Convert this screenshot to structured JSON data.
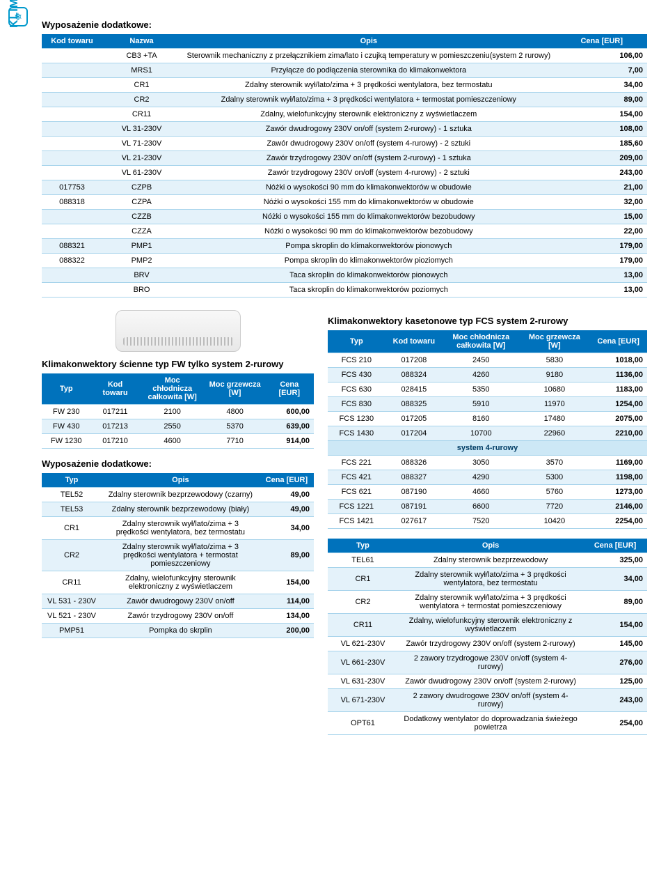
{
  "sideLabel": "KLIMATYZACJA",
  "section1": {
    "title": "Wyposażenie dodatkowe:",
    "headers": [
      "Kod towaru",
      "Nazwa",
      "Opis",
      "Cena [EUR]"
    ],
    "rows": [
      {
        "code": "",
        "name": "CB3 +TA",
        "desc": "Sterownik mechaniczny z przełącznikiem zima/lato i czujką temperatury w pomieszczeniu(system 2 rurowy)",
        "price": "106,00"
      },
      {
        "code": "",
        "name": "MRS1",
        "desc": "Przyłącze do podłączenia sterownika do klimakonwektora",
        "price": "7,00"
      },
      {
        "code": "",
        "name": "CR1",
        "desc": "Zdalny sterownik wył/lato/zima + 3 prędkości wentylatora, bez termostatu",
        "price": "34,00"
      },
      {
        "code": "",
        "name": "CR2",
        "desc": "Zdalny sterownik wył/lato/zima + 3 prędkości wentylatora + termostat pomieszczeniowy",
        "price": "89,00"
      },
      {
        "code": "",
        "name": "CR11",
        "desc": "Zdalny, wielofunkcyjny sterownik elektroniczny z wyświetlaczem",
        "price": "154,00"
      },
      {
        "code": "",
        "name": "VL 31-230V",
        "desc": "Zawór dwudrogowy 230V on/off (system 2-rurowy) - 1 sztuka",
        "price": "108,00"
      },
      {
        "code": "",
        "name": "VL 71-230V",
        "desc": "Zawór dwudrogowy 230V on/off (system 4-rurowy) - 2 sztuki",
        "price": "185,60"
      },
      {
        "code": "",
        "name": "VL 21-230V",
        "desc": "Zawór trzydrogowy 230V on/off (system 2-rurowy) - 1 sztuka",
        "price": "209,00"
      },
      {
        "code": "",
        "name": "VL 61-230V",
        "desc": "Zawór trzydrogowy 230V on/off (system 4-rurowy) - 2 sztuki",
        "price": "243,00"
      },
      {
        "code": "017753",
        "name": "CZPB",
        "desc": "Nóżki o wysokości 90 mm do klimakonwektorów w obudowie",
        "price": "21,00"
      },
      {
        "code": "088318",
        "name": "CZPA",
        "desc": "Nóżki o wysokości 155 mm do klimakonwektorów w obudowie",
        "price": "32,00"
      },
      {
        "code": "",
        "name": "CZZB",
        "desc": "Nóżki o wysokości 155 mm do klimakonwektorów bezobudowy",
        "price": "15,00"
      },
      {
        "code": "",
        "name": "CZZA",
        "desc": "Nóżki o wysokości 90 mm do klimakonwektorów bezobudowy",
        "price": "22,00"
      },
      {
        "code": "088321",
        "name": "PMP1",
        "desc": "Pompa skroplin do klimakonwektorów pionowych",
        "price": "179,00"
      },
      {
        "code": "088322",
        "name": "PMP2",
        "desc": "Pompa skroplin do klimakonwektorów pioziomych",
        "price": "179,00"
      },
      {
        "code": "",
        "name": "BRV",
        "desc": "Taca skroplin do klimakonwektorów pionowych",
        "price": "13,00"
      },
      {
        "code": "",
        "name": "BRO",
        "desc": "Taca skroplin do klimakonwektorów poziomych",
        "price": "13,00"
      }
    ]
  },
  "fwTable": {
    "title": "Klimakonwektory ścienne typ FW tylko system 2-rurowy",
    "headers": [
      "Typ",
      "Kod towaru",
      "Moc chłodnicza całkowita [W]",
      "Moc grzewcza [W]",
      "Cena [EUR]"
    ],
    "rows": [
      {
        "c": [
          "FW 230",
          "017211",
          "2100",
          "4800",
          "600,00"
        ]
      },
      {
        "c": [
          "FW 430",
          "017213",
          "2550",
          "5370",
          "639,00"
        ]
      },
      {
        "c": [
          "FW 1230",
          "017210",
          "4600",
          "7710",
          "914,00"
        ]
      }
    ]
  },
  "addon2": {
    "title": "Wyposażenie dodatkowe:",
    "headers": [
      "Typ",
      "Opis",
      "Cena [EUR]"
    ],
    "rows": [
      {
        "c": [
          "TEL52",
          "Zdalny sterownik bezprzewodowy (czarny)",
          "49,00"
        ]
      },
      {
        "c": [
          "TEL53",
          "Zdalny sterownik bezprzewodowy (biały)",
          "49,00"
        ]
      },
      {
        "c": [
          "CR1",
          "Zdalny sterownik wył/lato/zima + 3 prędkości wentylatora, bez termostatu",
          "34,00"
        ]
      },
      {
        "c": [
          "CR2",
          "Zdalny sterownik wył/lato/zima + 3 prędkości wentylatora + termostat pomieszczeniowy",
          "89,00"
        ]
      },
      {
        "c": [
          "CR11",
          "Zdalny, wielofunkcyjny sterownik elektroniczny z wyświetlaczem",
          "154,00"
        ]
      },
      {
        "c": [
          "VL 531 - 230V",
          "Zawór dwudrogowy 230V on/off",
          "114,00"
        ]
      },
      {
        "c": [
          "VL 521 - 230V",
          "Zawór trzydrogowy 230V on/off",
          "134,00"
        ]
      },
      {
        "c": [
          "PMP51",
          "Pompka do skrplin",
          "200,00"
        ]
      }
    ]
  },
  "fcsTable": {
    "title": "Klimakonwektory kasetonowe typ FCS system 2-rurowy",
    "headers": [
      "Typ",
      "Kod towaru",
      "Moc chłodnicza całkowita [W]",
      "Moc grzewcza [W]",
      "Cena [EUR]"
    ],
    "rows2": [
      {
        "c": [
          "FCS 210",
          "017208",
          "2450",
          "5830",
          "1018,00"
        ]
      },
      {
        "c": [
          "FCS 430",
          "088324",
          "4260",
          "9180",
          "1136,00"
        ]
      },
      {
        "c": [
          "FCS 630",
          "028415",
          "5350",
          "10680",
          "1183,00"
        ]
      },
      {
        "c": [
          "FCS 830",
          "088325",
          "5910",
          "11970",
          "1254,00"
        ]
      },
      {
        "c": [
          "FCS 1230",
          "017205",
          "8160",
          "17480",
          "2075,00"
        ]
      },
      {
        "c": [
          "FCS 1430",
          "017204",
          "10700",
          "22960",
          "2210,00"
        ]
      }
    ],
    "sub4": "system 4-rurowy",
    "rows4": [
      {
        "c": [
          "FCS 221",
          "088326",
          "3050",
          "3570",
          "1169,00"
        ]
      },
      {
        "c": [
          "FCS 421",
          "088327",
          "4290",
          "5300",
          "1198,00"
        ]
      },
      {
        "c": [
          "FCS 621",
          "087190",
          "4660",
          "5760",
          "1273,00"
        ]
      },
      {
        "c": [
          "FCS 1221",
          "087191",
          "6600",
          "7720",
          "2146,00"
        ]
      },
      {
        "c": [
          "FCS 1421",
          "027617",
          "7520",
          "10420",
          "2254,00"
        ]
      }
    ]
  },
  "addon3": {
    "headers": [
      "Typ",
      "Opis",
      "Cena [EUR]"
    ],
    "rows": [
      {
        "c": [
          "TEL61",
          "Zdalny sterownik bezprzewodowy",
          "325,00"
        ]
      },
      {
        "c": [
          "CR1",
          "Zdalny sterownik wył/lato/zima + 3 prędkości wentylatora, bez termostatu",
          "34,00"
        ]
      },
      {
        "c": [
          "CR2",
          "Zdalny sterownik wył/lato/zima + 3 prędkości wentylatora + termostat pomieszczeniowy",
          "89,00"
        ]
      },
      {
        "c": [
          "CR11",
          "Zdalny, wielofunkcyjny sterownik elektroniczny z wyświetlaczem",
          "154,00"
        ]
      },
      {
        "c": [
          "VL 621-230V",
          "Zawór trzydrogowy 230V on/off (system 2-rurowy)",
          "145,00"
        ]
      },
      {
        "c": [
          "VL 661-230V",
          "2 zawory trzydrogowe 230V on/off (system 4-rurowy)",
          "276,00"
        ]
      },
      {
        "c": [
          "VL 631-230V",
          "Zawór dwudrogowy 230V on/off (system 2-rurowy)",
          "125,00"
        ]
      },
      {
        "c": [
          "VL 671-230V",
          "2 zawory dwudrogowe 230V on/off (system 4-rurowy)",
          "243,00"
        ]
      },
      {
        "c": [
          "OPT61",
          "Dodatkowy wentylator do doprowadzania świeżego powietrza",
          "254,00"
        ]
      }
    ]
  },
  "colWidths": {
    "table1": [
      "10%",
      "13%",
      "62%",
      "15%"
    ],
    "table5col": [
      "18%",
      "18%",
      "24%",
      "22%",
      "18%"
    ],
    "table3col": [
      "22%",
      "58%",
      "20%"
    ]
  },
  "colors": {
    "headerBg": "#0072bc",
    "headerFg": "#ffffff",
    "altBg": "#e4f2fa",
    "border": "#a6d3eb",
    "accent": "#0099cc"
  }
}
